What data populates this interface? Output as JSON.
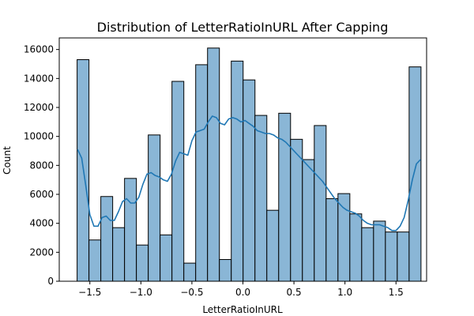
{
  "chart_data": {
    "type": "bar",
    "title": "Distribution of LetterRatioInURL After Capping",
    "xlabel": "LetterRatioInURL",
    "ylabel": "Count",
    "xlim": [
      -1.8,
      1.8
    ],
    "ylim": [
      0,
      16800
    ],
    "x_ticks": [
      -1.5,
      -1.0,
      -0.5,
      0.0,
      0.5,
      1.0,
      1.5
    ],
    "x_tick_labels": [
      "−1.5",
      "−1.0",
      "−0.5",
      "0.0",
      "0.5",
      "1.0",
      "1.5"
    ],
    "y_ticks": [
      0,
      2000,
      4000,
      6000,
      8000,
      10000,
      12000,
      14000,
      16000
    ],
    "y_tick_labels": [
      "0",
      "2000",
      "4000",
      "6000",
      "8000",
      "10000",
      "12000",
      "14000",
      "16000"
    ],
    "bin_range": [
      -1.625,
      1.745
    ],
    "bin_counts": [
      15300,
      2850,
      5850,
      3700,
      7100,
      2500,
      10100,
      3200,
      13800,
      1250,
      14950,
      16100,
      1500,
      15200,
      13900,
      11450,
      4900,
      11600,
      9800,
      8400,
      10750,
      5700,
      6050,
      4650,
      3700,
      4150,
      3400,
      3400,
      14800
    ],
    "kde": {
      "x": [
        -1.62,
        -1.58,
        -1.54,
        -1.5,
        -1.46,
        -1.42,
        -1.38,
        -1.34,
        -1.3,
        -1.26,
        -1.22,
        -1.18,
        -1.14,
        -1.1,
        -1.06,
        -1.02,
        -0.98,
        -0.94,
        -0.9,
        -0.86,
        -0.82,
        -0.78,
        -0.74,
        -0.7,
        -0.66,
        -0.62,
        -0.58,
        -0.54,
        -0.5,
        -0.46,
        -0.42,
        -0.38,
        -0.34,
        -0.3,
        -0.26,
        -0.22,
        -0.18,
        -0.14,
        -0.1,
        -0.06,
        -0.02,
        0.02,
        0.06,
        0.1,
        0.14,
        0.18,
        0.22,
        0.26,
        0.3,
        0.34,
        0.38,
        0.42,
        0.46,
        0.5,
        0.54,
        0.58,
        0.62,
        0.66,
        0.7,
        0.74,
        0.78,
        0.82,
        0.86,
        0.9,
        0.94,
        0.98,
        1.02,
        1.06,
        1.1,
        1.14,
        1.18,
        1.22,
        1.26,
        1.3,
        1.34,
        1.38,
        1.42,
        1.46,
        1.5,
        1.54,
        1.58,
        1.62,
        1.66,
        1.7,
        1.74
      ],
      "y": [
        9100,
        8500,
        6600,
        4600,
        3800,
        3800,
        4400,
        4500,
        4200,
        4200,
        4800,
        5500,
        5700,
        5400,
        5400,
        5800,
        6700,
        7400,
        7500,
        7300,
        7200,
        7000,
        6900,
        7400,
        8300,
        8900,
        8800,
        8700,
        9700,
        10300,
        10400,
        10500,
        11000,
        11400,
        11300,
        10900,
        10800,
        11200,
        11300,
        11200,
        11000,
        11100,
        10900,
        10700,
        10400,
        10300,
        10200,
        10200,
        10100,
        9900,
        9800,
        9600,
        9300,
        9000,
        8700,
        8400,
        8100,
        7800,
        7500,
        7200,
        6900,
        6500,
        6100,
        5700,
        5400,
        5100,
        4900,
        4800,
        4700,
        4500,
        4200,
        4000,
        3900,
        3900,
        3900,
        3800,
        3700,
        3500,
        3500,
        3800,
        4400,
        5600,
        7000,
        8100,
        8400
      ]
    },
    "bar_fill": "#8ab6d6",
    "bar_edge": "#000000",
    "kde_color": "#1f77b4",
    "grid": false,
    "legend": "none"
  }
}
